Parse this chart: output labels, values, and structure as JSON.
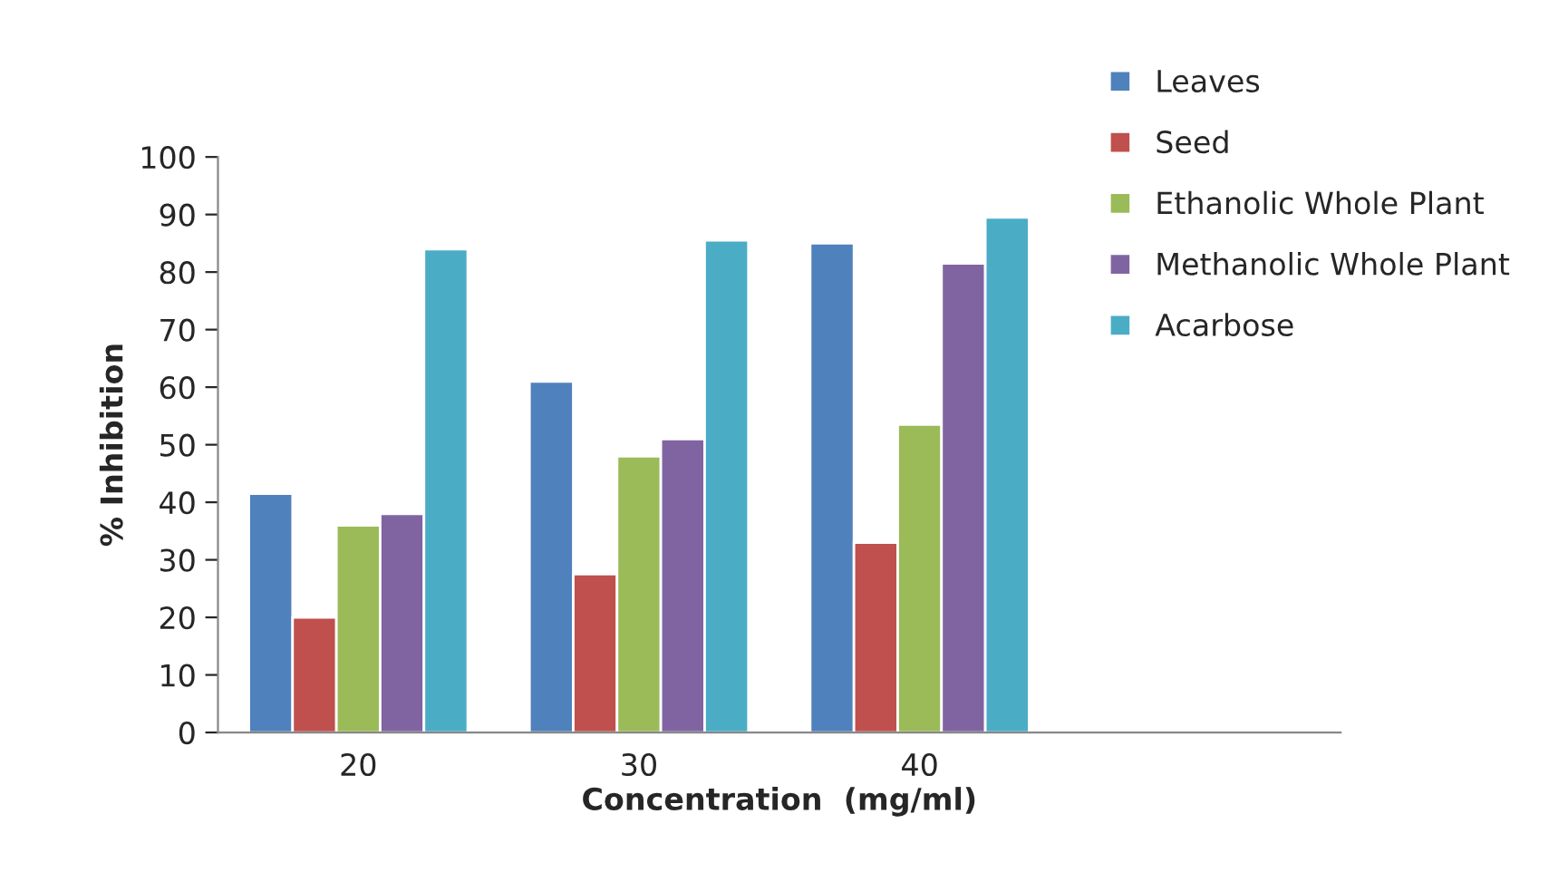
{
  "chart_data": {
    "type": "bar",
    "xlabel": "Concentration  (mg/ml)",
    "ylabel": "% Inhibition",
    "categories": [
      "20",
      "30",
      "40",
      null
    ],
    "series": [
      {
        "name": "Leaves",
        "color": "#4f81bd",
        "values": [
          41.5,
          61,
          85,
          null
        ]
      },
      {
        "name": "Seed",
        "color": "#c0504d",
        "values": [
          20,
          27.5,
          33,
          null
        ]
      },
      {
        "name": "Ethanolic Whole Plant",
        "color": "#9bbb59",
        "values": [
          36,
          48,
          53.5,
          null
        ]
      },
      {
        "name": "Methanolic Whole Plant",
        "color": "#8064a2",
        "values": [
          38,
          51,
          81.5,
          null
        ]
      },
      {
        "name": "Acarbose",
        "color": "#4bacc6",
        "values": [
          84,
          85.5,
          89.5,
          null
        ]
      }
    ],
    "ylim": [
      0,
      100
    ],
    "yticks": [
      0,
      10,
      20,
      30,
      40,
      50,
      60,
      70,
      80,
      90,
      100
    ],
    "grid": false,
    "legend": "top right"
  }
}
